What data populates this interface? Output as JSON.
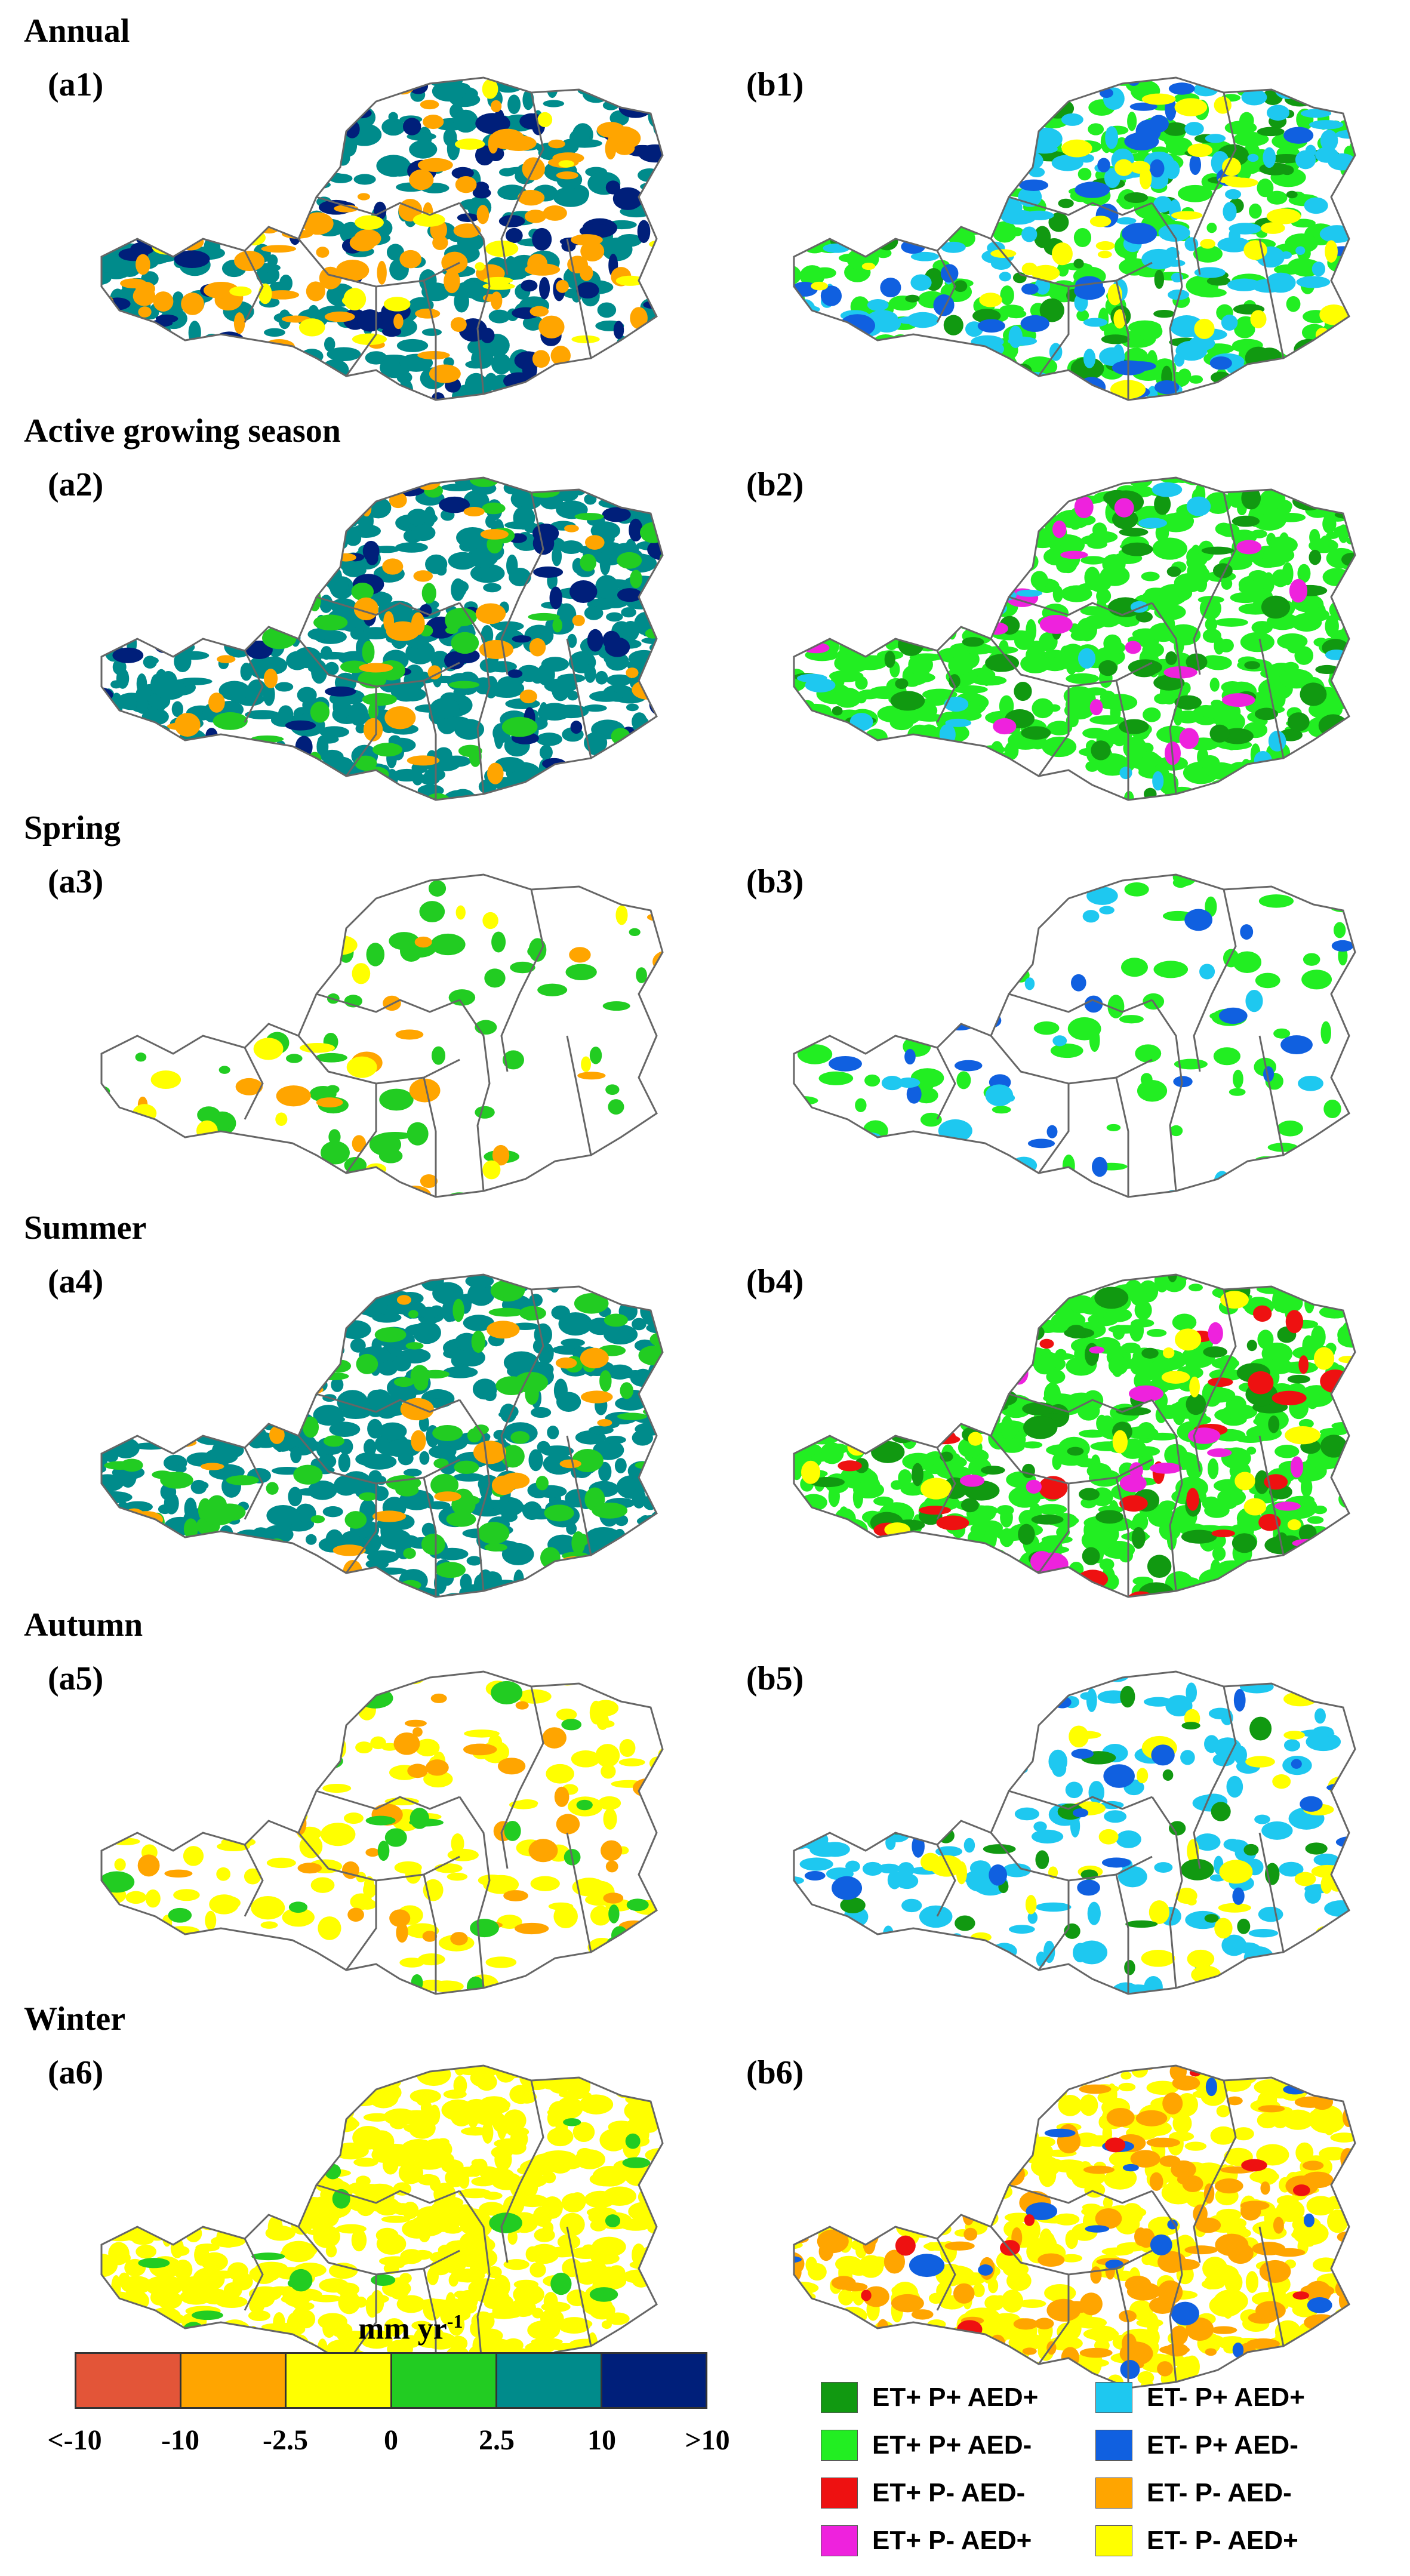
{
  "rows": [
    {
      "season": "Annual",
      "a": "(a1)",
      "b": "(b1)"
    },
    {
      "season": "Active growing season",
      "a": "(a2)",
      "b": "(b2)"
    },
    {
      "season": "Spring",
      "a": "(a3)",
      "b": "(b3)"
    },
    {
      "season": "Summer",
      "a": "(a4)",
      "b": "(b4)"
    },
    {
      "season": "Autumn",
      "a": "(a5)",
      "b": "(b5)"
    },
    {
      "season": "Winter",
      "a": "(a6)",
      "b": "(b6)"
    }
  ],
  "colorbar": {
    "unit": "mm yr",
    "unit_exp": "-1",
    "colors": [
      "#e35538",
      "#ffa500",
      "#ffff00",
      "#22cc22",
      "#008b8b",
      "#001f7a"
    ],
    "ticks": [
      "<-10",
      "-10",
      "-2.5",
      "0",
      "2.5",
      "10",
      ">10"
    ]
  },
  "legend": [
    {
      "label": "ET+ P+ AED+",
      "color": "#119911"
    },
    {
      "label": "ET- P+ AED+",
      "color": "#1ec8f0"
    },
    {
      "label": "ET+ P+ AED-",
      "color": "#22ee22"
    },
    {
      "label": "ET- P+ AED-",
      "color": "#1060e0"
    },
    {
      "label": "ET+ P- AED-",
      "color": "#ee1111"
    },
    {
      "label": "ET- P- AED-",
      "color": "#ffa500"
    },
    {
      "label": "ET+ P- AED+",
      "color": "#ee22dd"
    },
    {
      "label": "ET- P- AED+",
      "color": "#ffff00"
    }
  ],
  "maps": {
    "a1": [
      [
        "#008b8b",
        0.45
      ],
      [
        "#001f7a",
        0.12
      ],
      [
        "#ffa500",
        0.15
      ],
      [
        "#ffff00",
        0.05
      ]
    ],
    "b1": [
      [
        "#22ee22",
        0.35
      ],
      [
        "#119911",
        0.1
      ],
      [
        "#1ec8f0",
        0.2
      ],
      [
        "#1060e0",
        0.06
      ],
      [
        "#ffff00",
        0.05
      ]
    ],
    "a2": [
      [
        "#008b8b",
        0.7
      ],
      [
        "#001f7a",
        0.08
      ],
      [
        "#22cc22",
        0.08
      ],
      [
        "#ffa500",
        0.05
      ]
    ],
    "b2": [
      [
        "#22ee22",
        0.75
      ],
      [
        "#119911",
        0.1
      ],
      [
        "#ee22dd",
        0.03
      ],
      [
        "#1ec8f0",
        0.03
      ]
    ],
    "a3": [
      [
        "#22cc22",
        0.1
      ],
      [
        "#ffa500",
        0.04
      ],
      [
        "#ffff00",
        0.03
      ]
    ],
    "b3": [
      [
        "#22ee22",
        0.1
      ],
      [
        "#1060e0",
        0.03
      ],
      [
        "#1ec8f0",
        0.03
      ]
    ],
    "a4": [
      [
        "#008b8b",
        0.65
      ],
      [
        "#22cc22",
        0.15
      ],
      [
        "#ffa500",
        0.04
      ]
    ],
    "b4": [
      [
        "#22ee22",
        0.7
      ],
      [
        "#119911",
        0.12
      ],
      [
        "#ee1111",
        0.05
      ],
      [
        "#ee22dd",
        0.04
      ],
      [
        "#ffff00",
        0.03
      ]
    ],
    "a5": [
      [
        "#ffff00",
        0.18
      ],
      [
        "#ffa500",
        0.05
      ],
      [
        "#22cc22",
        0.04
      ]
    ],
    "b5": [
      [
        "#1ec8f0",
        0.2
      ],
      [
        "#ffff00",
        0.06
      ],
      [
        "#119911",
        0.04
      ],
      [
        "#1060e0",
        0.03
      ]
    ],
    "a6": [
      [
        "#ffff00",
        0.85
      ],
      [
        "#22cc22",
        0.02
      ]
    ],
    "b6": [
      [
        "#ffff00",
        0.6
      ],
      [
        "#ffa500",
        0.2
      ],
      [
        "#1060e0",
        0.04
      ],
      [
        "#ee1111",
        0.02
      ]
    ]
  }
}
